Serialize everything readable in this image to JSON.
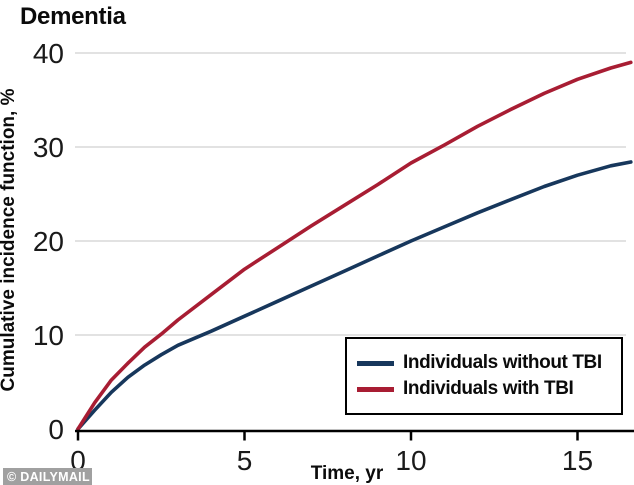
{
  "title": "Dementia",
  "watermark": "© DAILYMAIL",
  "chart_data": {
    "type": "line",
    "title": "Dementia",
    "xlabel": "Time, yr",
    "ylabel": "Cumulative incidence function, %",
    "xlim": [
      0,
      16.6
    ],
    "ylim": [
      0,
      40
    ],
    "x_ticks": [
      0,
      5,
      10,
      15
    ],
    "y_ticks": [
      0,
      10,
      20,
      30,
      40
    ],
    "grid": "horizontal-only",
    "gridline_color": "#d9d9d9",
    "legend_position": "bottom-right",
    "series": [
      {
        "name": "Individuals without TBI",
        "color": "#17375C",
        "x": [
          0,
          0.5,
          1,
          1.5,
          2,
          2.5,
          3,
          4,
          5,
          6,
          7,
          8,
          9,
          10,
          11,
          12,
          13,
          14,
          15,
          16,
          16.6
        ],
        "y": [
          0,
          2.0,
          3.9,
          5.5,
          6.8,
          7.9,
          8.9,
          10.4,
          12.0,
          13.6,
          15.2,
          16.8,
          18.4,
          20.0,
          21.5,
          23.0,
          24.4,
          25.8,
          27.0,
          28.0,
          28.4
        ]
      },
      {
        "name": "Individuals with TBI",
        "color": "#A81D33",
        "x": [
          0,
          0.5,
          1,
          1.5,
          2,
          2.5,
          3,
          4,
          5,
          6,
          7,
          8,
          9,
          10,
          11,
          12,
          13,
          14,
          15,
          16,
          16.6
        ],
        "y": [
          0,
          2.8,
          5.2,
          7.0,
          8.7,
          10.1,
          11.6,
          14.3,
          17.0,
          19.3,
          21.6,
          23.8,
          26.0,
          28.3,
          30.2,
          32.2,
          34.0,
          35.7,
          37.2,
          38.4,
          39.0
        ]
      }
    ]
  }
}
